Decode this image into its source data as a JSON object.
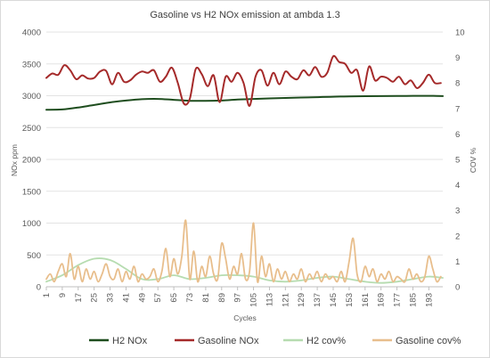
{
  "chart_data": {
    "type": "line",
    "title": "Gasoline vs H2 NOx emission at ambda 1.3",
    "xlabel": "Cycles",
    "ylabel_left": "NOx ppm",
    "ylabel_right": "COV %",
    "ylim_left": [
      0,
      4000
    ],
    "ylim_right": [
      0,
      10
    ],
    "yticks_left": [
      0,
      500,
      1000,
      1500,
      2000,
      2500,
      3000,
      3500,
      4000
    ],
    "yticks_right": [
      0,
      1,
      2,
      3,
      4,
      5,
      6,
      7,
      8,
      9,
      10
    ],
    "xticks": [
      1,
      9,
      17,
      25,
      33,
      41,
      49,
      57,
      65,
      73,
      81,
      89,
      97,
      105,
      113,
      121,
      129,
      137,
      145,
      153,
      161,
      169,
      177,
      185,
      193
    ],
    "xlim": [
      1,
      200
    ],
    "grid": "horizontal",
    "legend_position": "bottom",
    "series": [
      {
        "name": "H2 NOx",
        "axis": "left",
        "color": "#1e4d1e",
        "x": [
          1,
          9,
          17,
          25,
          33,
          41,
          49,
          57,
          65,
          73,
          81,
          89,
          97,
          105,
          113,
          121,
          129,
          137,
          145,
          153,
          161,
          169,
          177,
          185,
          193,
          200
        ],
        "y": [
          2780,
          2785,
          2815,
          2855,
          2895,
          2925,
          2945,
          2950,
          2935,
          2920,
          2920,
          2925,
          2940,
          2950,
          2958,
          2965,
          2972,
          2978,
          2985,
          2990,
          2993,
          2995,
          2997,
          2998,
          2998,
          2995
        ]
      },
      {
        "name": "Gasoline NOx",
        "axis": "left",
        "color": "#a52a2a",
        "x": [
          1,
          4,
          7,
          10,
          13,
          16,
          19,
          22,
          25,
          28,
          31,
          34,
          37,
          40,
          43,
          46,
          49,
          52,
          55,
          58,
          61,
          64,
          67,
          70,
          73,
          76,
          79,
          82,
          85,
          88,
          91,
          94,
          97,
          100,
          103,
          106,
          109,
          112,
          115,
          118,
          121,
          124,
          127,
          130,
          133,
          136,
          139,
          142,
          145,
          148,
          151,
          154,
          157,
          160,
          163,
          166,
          169,
          172,
          175,
          178,
          181,
          184,
          187,
          190,
          193,
          196,
          199
        ],
        "y": [
          3280,
          3350,
          3330,
          3480,
          3400,
          3260,
          3320,
          3270,
          3280,
          3380,
          3390,
          3180,
          3360,
          3220,
          3240,
          3330,
          3380,
          3360,
          3400,
          3220,
          3300,
          3440,
          3200,
          2880,
          2950,
          3420,
          3340,
          3150,
          3320,
          2900,
          3300,
          3220,
          3360,
          3200,
          2840,
          3300,
          3400,
          3160,
          3360,
          3180,
          3380,
          3300,
          3260,
          3400,
          3320,
          3450,
          3300,
          3360,
          3620,
          3530,
          3500,
          3360,
          3400,
          3080,
          3460,
          3240,
          3300,
          3280,
          3220,
          3300,
          3180,
          3240,
          3120,
          3200,
          3330,
          3200,
          3200
        ]
      },
      {
        "name": "H2 cov%",
        "axis": "right",
        "color": "#b6dcb0",
        "x": [
          1,
          9,
          17,
          25,
          33,
          41,
          49,
          57,
          65,
          73,
          81,
          89,
          97,
          105,
          113,
          121,
          129,
          137,
          145,
          153,
          161,
          169,
          177,
          185,
          193,
          200
        ],
        "y": [
          0.2,
          0.45,
          0.85,
          1.1,
          1.05,
          0.7,
          0.3,
          0.3,
          0.45,
          0.3,
          0.35,
          0.45,
          0.45,
          0.4,
          0.25,
          0.2,
          0.25,
          0.35,
          0.4,
          0.3,
          0.2,
          0.15,
          0.2,
          0.3,
          0.4,
          0.35
        ]
      },
      {
        "name": "Gasoline cov%",
        "axis": "right",
        "color": "#e8be8c",
        "x": [
          1,
          3,
          5,
          7,
          9,
          11,
          13,
          15,
          17,
          19,
          21,
          23,
          25,
          27,
          29,
          31,
          33,
          35,
          37,
          39,
          41,
          43,
          45,
          47,
          49,
          51,
          53,
          55,
          57,
          59,
          61,
          63,
          65,
          67,
          69,
          71,
          73,
          75,
          77,
          79,
          81,
          83,
          85,
          87,
          89,
          91,
          93,
          95,
          97,
          99,
          101,
          103,
          105,
          107,
          109,
          111,
          113,
          115,
          117,
          119,
          121,
          123,
          125,
          127,
          129,
          131,
          133,
          135,
          137,
          139,
          141,
          143,
          145,
          147,
          149,
          151,
          153,
          155,
          157,
          159,
          161,
          163,
          165,
          167,
          169,
          171,
          173,
          175,
          177,
          179,
          181,
          183,
          185,
          187,
          189,
          191,
          193,
          195,
          197,
          199
        ],
        "y": [
          0.3,
          0.5,
          0.2,
          0.6,
          0.9,
          0.4,
          1.3,
          0.3,
          0.8,
          0.2,
          0.7,
          0.3,
          0.6,
          0.2,
          0.5,
          0.9,
          0.4,
          0.3,
          0.7,
          0.2,
          0.6,
          0.3,
          0.8,
          0.2,
          0.5,
          0.3,
          0.4,
          0.7,
          0.2,
          0.6,
          1.5,
          0.4,
          1.1,
          0.5,
          1.2,
          2.6,
          0.3,
          1.4,
          0.2,
          0.8,
          0.4,
          1.2,
          0.5,
          0.3,
          1.7,
          1.1,
          0.3,
          0.8,
          0.5,
          1.3,
          0.3,
          0.6,
          2.5,
          0.2,
          1.2,
          0.4,
          0.9,
          0.2,
          0.7,
          0.3,
          0.6,
          0.2,
          0.5,
          0.3,
          0.7,
          0.2,
          0.5,
          0.3,
          0.6,
          0.2,
          0.5,
          0.3,
          0.4,
          0.2,
          0.6,
          0.2,
          1.0,
          1.9,
          0.5,
          0.2,
          0.8,
          0.4,
          0.7,
          0.2,
          0.5,
          0.3,
          0.6,
          0.2,
          0.4,
          0.3,
          0.2,
          0.7,
          0.3,
          0.5,
          0.2,
          0.4,
          1.2,
          0.7,
          0.2,
          0.4
        ]
      }
    ]
  }
}
